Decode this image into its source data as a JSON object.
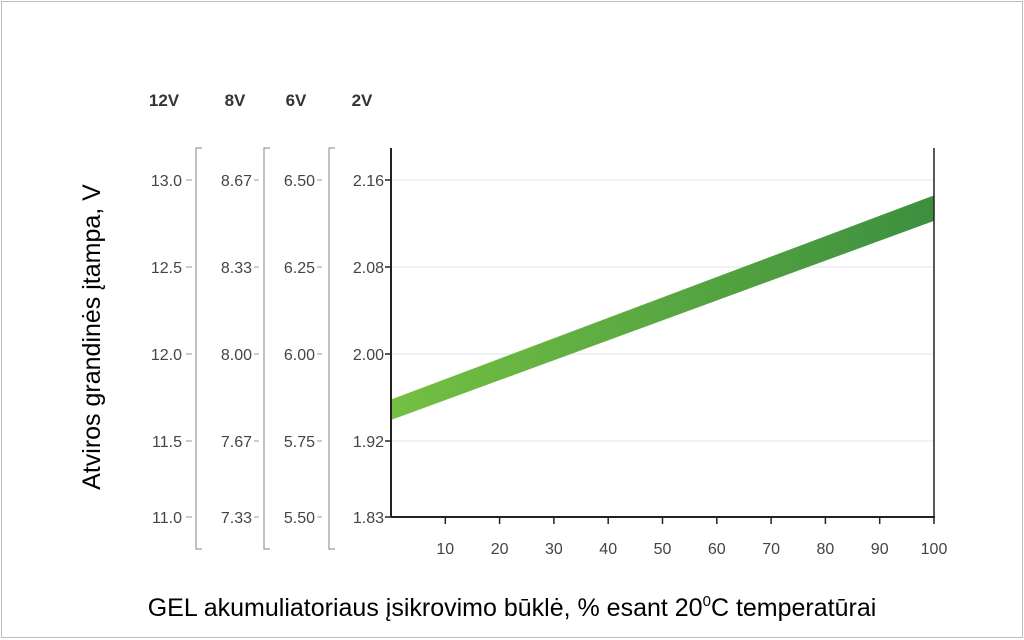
{
  "chart_data": {
    "type": "area",
    "title": "",
    "ylabel": "Atviros grandinės įtampa, V",
    "xlabel_main": "GEL akumuliatoriaus įsikrovimo būklė, % esant 20",
    "xlabel_sup": "0",
    "xlabel_rest": "C temperatūrai",
    "xlim": [
      0,
      100
    ],
    "xticks": [
      "10",
      "20",
      "30",
      "40",
      "50",
      "60",
      "70",
      "80",
      "90",
      "100"
    ],
    "ylim": [
      1.83,
      2.186
    ],
    "grid": true,
    "voltage_scales": [
      {
        "name": "12V",
        "ticks": [
          "13.0",
          "12.5",
          "12.0",
          "11.5",
          "11.0"
        ]
      },
      {
        "name": "8V",
        "ticks": [
          "8.67",
          "8.33",
          "8.00",
          "7.67",
          "7.33"
        ]
      },
      {
        "name": "6V",
        "ticks": [
          "6.50",
          "6.25",
          "6.00",
          "5.75",
          "5.50"
        ]
      },
      {
        "name": "2V",
        "ticks": [
          "2.16",
          "2.08",
          "2.00",
          "1.92",
          "1.83"
        ]
      }
    ],
    "band": {
      "x": [
        0,
        100
      ],
      "upper": [
        1.945,
        2.145
      ],
      "lower": [
        1.925,
        2.12
      ],
      "color_start": "#74c043",
      "color_end": "#3d8f3f"
    }
  }
}
